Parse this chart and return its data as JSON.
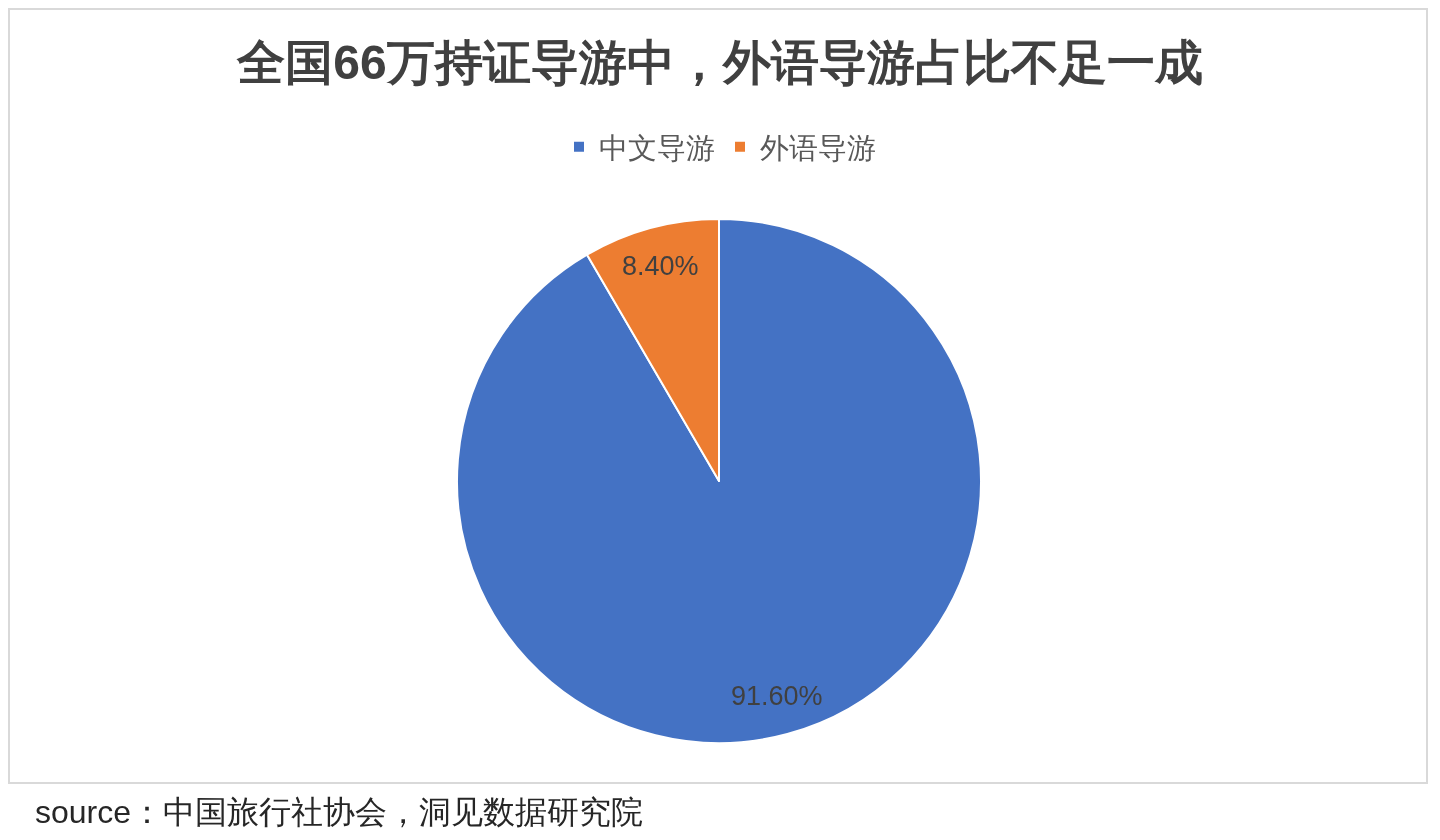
{
  "chart_data": {
    "type": "pie",
    "title": "全国66万持证导游中，外语导游占比不足一成",
    "categories": [
      "中文导游",
      "外语导游"
    ],
    "values": [
      91.6,
      8.4
    ],
    "colors": [
      "#4472c4",
      "#ed7d31"
    ],
    "value_labels": [
      "91.60%",
      "8.40%"
    ],
    "legend": "top",
    "annotations": [
      "source：中国旅行社协会，洞见数据研究院"
    ]
  }
}
